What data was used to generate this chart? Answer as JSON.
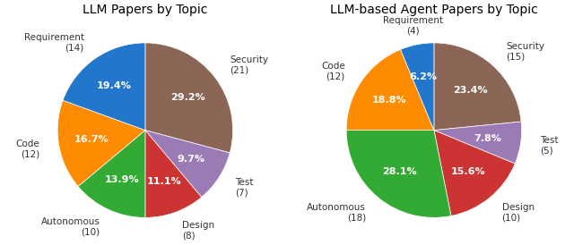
{
  "llm": {
    "title": "LLM Papers by Topic",
    "labels": [
      "Security\n(21)",
      "Test\n(7)",
      "Design\n(8)",
      "Autonomous\n(10)",
      "Code\n(12)",
      "Requirement\n(14)"
    ],
    "values": [
      21,
      7,
      8,
      10,
      12,
      14
    ],
    "percentages": [
      "29.2%",
      "9.7%",
      "11.1%",
      "13.9%",
      "16.7%",
      "19.4%"
    ],
    "colors": [
      "#8B6657",
      "#9B7BB5",
      "#CC3333",
      "#33AA33",
      "#FF8C00",
      "#2277CC"
    ],
    "startangle": 90
  },
  "agent": {
    "title": "LLM-based Agent Papers by Topic",
    "labels": [
      "Security\n(15)",
      "Test\n(5)",
      "Design\n(10)",
      "Autonomous\n(18)",
      "Code\n(12)",
      "Requirement\n(4)"
    ],
    "values": [
      15,
      5,
      10,
      18,
      12,
      4
    ],
    "percentages": [
      "23.4%",
      "7.8%",
      "15.6%",
      "28.1%",
      "18.8%",
      "6.2%"
    ],
    "colors": [
      "#8B6657",
      "#9B7BB5",
      "#CC3333",
      "#33AA33",
      "#FF8C00",
      "#2277CC"
    ],
    "startangle": 90
  },
  "pct_fontsize": 8,
  "label_fontsize": 7.5,
  "title_fontsize": 10
}
